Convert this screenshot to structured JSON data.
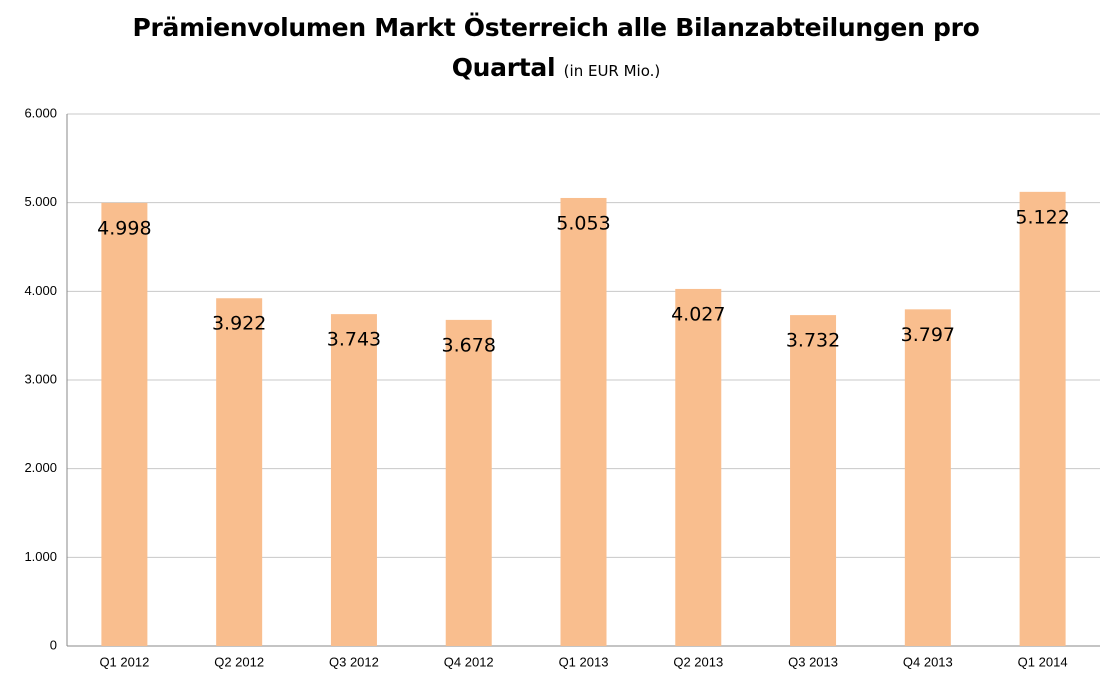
{
  "chart_data": {
    "type": "bar",
    "title": "Prämienvolumen Markt Österreich alle Bilanzabteilungen pro Quartal",
    "subtitle": "(in EUR Mio.)",
    "categories": [
      "Q1 2012",
      "Q2 2012",
      "Q3 2012",
      "Q4 2012",
      "Q1 2013",
      "Q2 2013",
      "Q3 2013",
      "Q4 2013",
      "Q1 2014"
    ],
    "values": [
      4998,
      3922,
      3743,
      3678,
      5053,
      4027,
      3732,
      3797,
      5122
    ],
    "value_labels": [
      "4.998",
      "3.922",
      "3.743",
      "3.678",
      "5.053",
      "4.027",
      "3.732",
      "3.797",
      "5.122"
    ],
    "color": "#f9be8e",
    "ylim": [
      0,
      6000
    ],
    "yticks": [
      0,
      {
        "value": 1000,
        "label": "1.000"
      },
      {
        "value": 2000,
        "label": "2.000"
      },
      {
        "value": 3000,
        "label": "3.000"
      },
      {
        "value": 4000,
        "label": "4.000"
      },
      {
        "value": 5000,
        "label": "5.000"
      },
      {
        "value": 6000,
        "label": "6.000"
      }
    ],
    "grid": true
  }
}
